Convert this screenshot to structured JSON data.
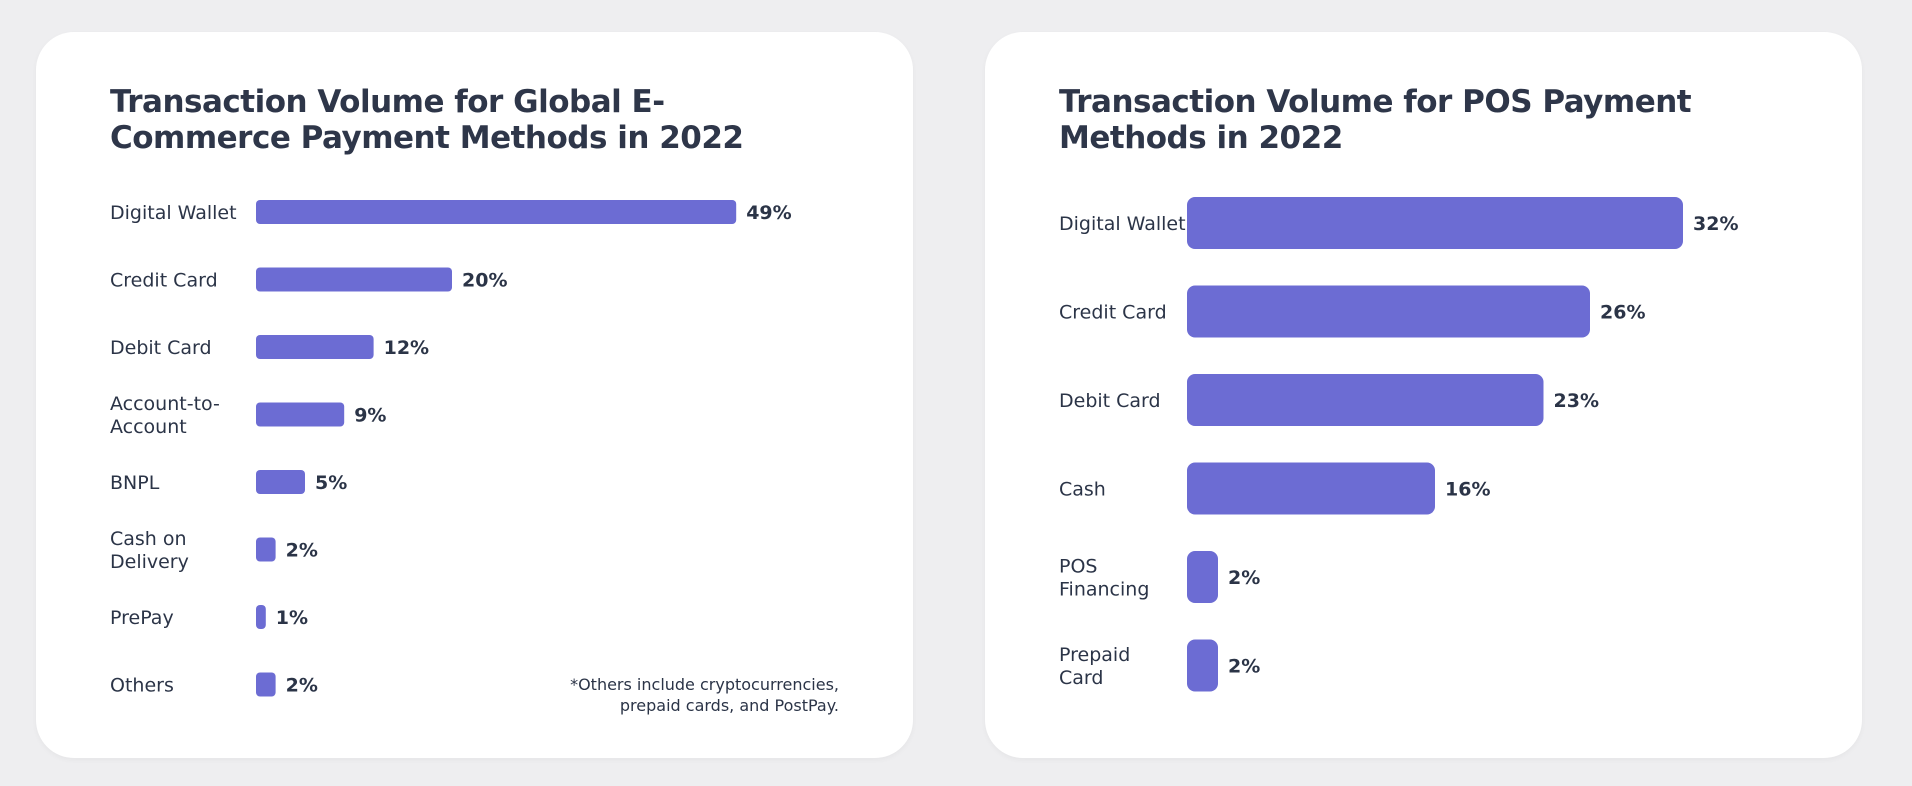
{
  "accent_color": "#6c6cd3",
  "chart_data": [
    {
      "type": "bar",
      "orientation": "horizontal",
      "title": "Transaction Volume for Global E-Commerce Payment Methods in 2022",
      "categories": [
        "Digital Wallet",
        "Credit Card",
        "Debit Card",
        "Account-to-Account",
        "BNPL",
        "Cash on Delivery",
        "PrePay",
        "Others"
      ],
      "category_lines": [
        [
          "Digital Wallet"
        ],
        [
          "Credit Card"
        ],
        [
          "Debit Card"
        ],
        [
          "Account-to-",
          "Account"
        ],
        [
          "BNPL"
        ],
        [
          "Cash on",
          "Delivery"
        ],
        [
          "PrePay"
        ],
        [
          "Others"
        ]
      ],
      "values": [
        49,
        20,
        12,
        9,
        5,
        2,
        1,
        2
      ],
      "value_labels": [
        "49%",
        "20%",
        "12%",
        "9%",
        "5%",
        "2%",
        "1%",
        "2%"
      ],
      "unit": "%",
      "footnote": "*Others include cryptocurrencies, prepaid cards, and PostPay.",
      "grid": false,
      "legend": "none"
    },
    {
      "type": "bar",
      "orientation": "horizontal",
      "title": "Transaction Volume for POS Payment Methods in 2022",
      "categories": [
        "Digital Wallet",
        "Credit Card",
        "Debit Card",
        "Cash",
        "POS Financing",
        "Prepaid Card"
      ],
      "category_lines": [
        [
          "Digital Wallet"
        ],
        [
          "Credit Card"
        ],
        [
          "Debit Card"
        ],
        [
          "Cash"
        ],
        [
          "POS",
          "Financing"
        ],
        [
          "Prepaid",
          "Card"
        ]
      ],
      "values": [
        32,
        26,
        23,
        16,
        2,
        2
      ],
      "value_labels": [
        "32%",
        "26%",
        "23%",
        "16%",
        "2%",
        "2%"
      ],
      "unit": "%",
      "grid": false,
      "legend": "none"
    }
  ]
}
